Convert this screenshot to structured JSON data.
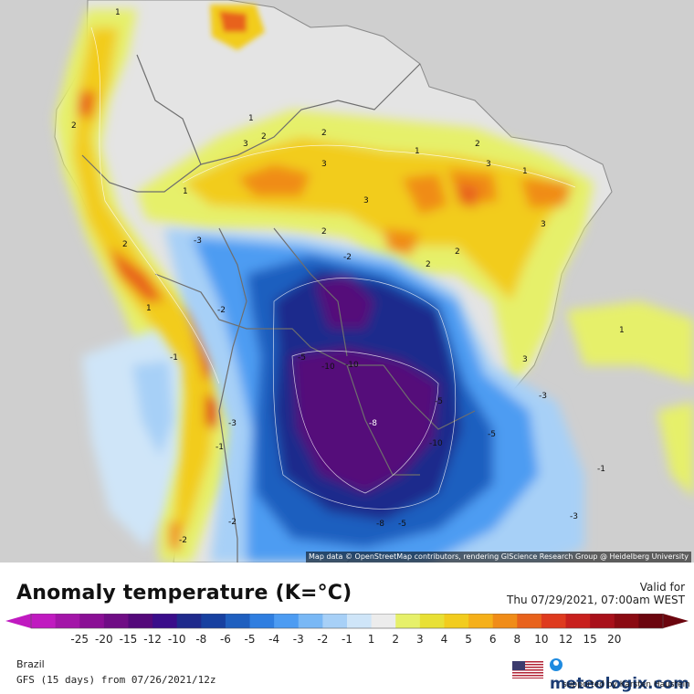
{
  "map": {
    "attribution": "Map data © OpenStreetMap contributors, rendering GIScience Research Group @ Heidelberg University",
    "colors": {
      "ocean": "#cfcfcf",
      "land": "#e4e4e4",
      "border": "#7a7a7a"
    },
    "contour_labels": [
      "1",
      "2",
      "3",
      "2",
      "3",
      "1",
      "2",
      "3",
      "2",
      "3",
      "2",
      "1",
      "3",
      "2",
      "1",
      "1",
      "2",
      "1",
      "2",
      "3",
      "-3",
      "-2",
      "-1",
      "-2",
      "-5",
      "-10",
      "-8",
      "-10",
      "-3",
      "-1",
      "-2",
      "-3",
      "-5",
      "-1",
      "-3",
      "-5",
      "-2",
      "-10",
      "-8",
      "-5",
      "1"
    ]
  },
  "legend": {
    "title": "Anomaly temperature (K=°C)",
    "valid_label": "Valid for",
    "valid_date": "Thu 07/29/2021, 07:00am WEST",
    "ticks": [
      "-25",
      "-20",
      "-15",
      "-12",
      "-10",
      "-8",
      "-6",
      "-5",
      "-4",
      "-3",
      "-2",
      "-1",
      "1",
      "2",
      "3",
      "4",
      "5",
      "6",
      "8",
      "10",
      "12",
      "15",
      "20"
    ],
    "colors": [
      "#c01ac0",
      "#a315a8",
      "#8a0f95",
      "#6f0d85",
      "#54097a",
      "#3a0d8a",
      "#1f2a8c",
      "#1740a0",
      "#1f5fbf",
      "#2f7ee0",
      "#4d9cf2",
      "#79b8f5",
      "#a7d0f7",
      "#cfe5f8",
      "#ececec",
      "#e6f06a",
      "#e8e035",
      "#f2cc1e",
      "#f5b01a",
      "#f08c18",
      "#e8621c",
      "#de3a1e",
      "#c8201d",
      "#a8101a",
      "#8a0a12",
      "#6b050e"
    ]
  },
  "footer": {
    "region": "Brazil",
    "model": "GFS (15 days) from 07/26/2021/12z",
    "brand": "meteologix.com",
    "support": "supported by Karsten Haustein"
  }
}
